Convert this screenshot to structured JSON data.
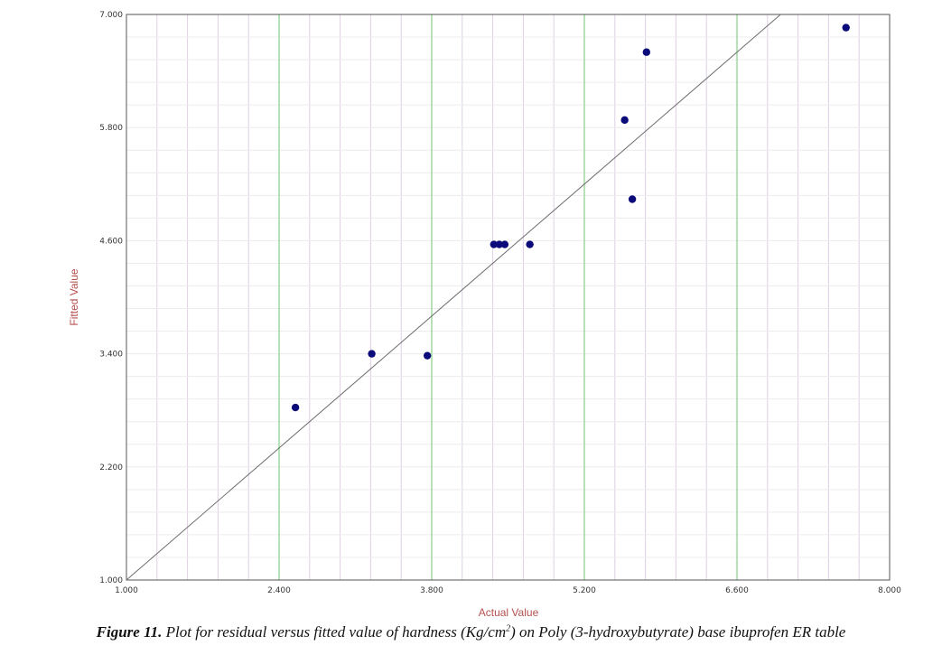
{
  "chart_data": {
    "type": "scatter",
    "xlabel": "Actual Value",
    "ylabel": "Fitted Value",
    "xlim": [
      1.0,
      8.0
    ],
    "ylim": [
      1.0,
      7.0
    ],
    "x_ticks": [
      "1.000",
      "2.400",
      "3.800",
      "5.200",
      "6.600",
      "8.000"
    ],
    "y_ticks": [
      "1.000",
      "2.200",
      "3.400",
      "4.600",
      "5.800",
      "7.000"
    ],
    "grid": true,
    "reference_line": {
      "slope": 1,
      "intercept": 0,
      "color": "#6e6e6e"
    },
    "points": [
      {
        "x": 2.55,
        "y": 2.83
      },
      {
        "x": 3.25,
        "y": 3.4
      },
      {
        "x": 3.76,
        "y": 3.38
      },
      {
        "x": 4.37,
        "y": 4.56
      },
      {
        "x": 4.42,
        "y": 4.56
      },
      {
        "x": 4.47,
        "y": 4.56
      },
      {
        "x": 4.7,
        "y": 4.56
      },
      {
        "x": 5.57,
        "y": 5.88
      },
      {
        "x": 5.64,
        "y": 5.04
      },
      {
        "x": 5.77,
        "y": 6.6
      },
      {
        "x": 7.6,
        "y": 6.86
      }
    ],
    "colors": {
      "points": "#0a0a7a",
      "major_grid": "#9fd89f",
      "minor_grid": "#ddd0e4",
      "axis_title": "#b5504e"
    }
  },
  "caption": {
    "label": "Figure 11.",
    "text": " Plot for residual versus fitted value of hardness (Kg/cm",
    "superscript": "2",
    "text_after": ") on Poly (3-hydroxybutyrate) base ibuprofen ER table"
  }
}
